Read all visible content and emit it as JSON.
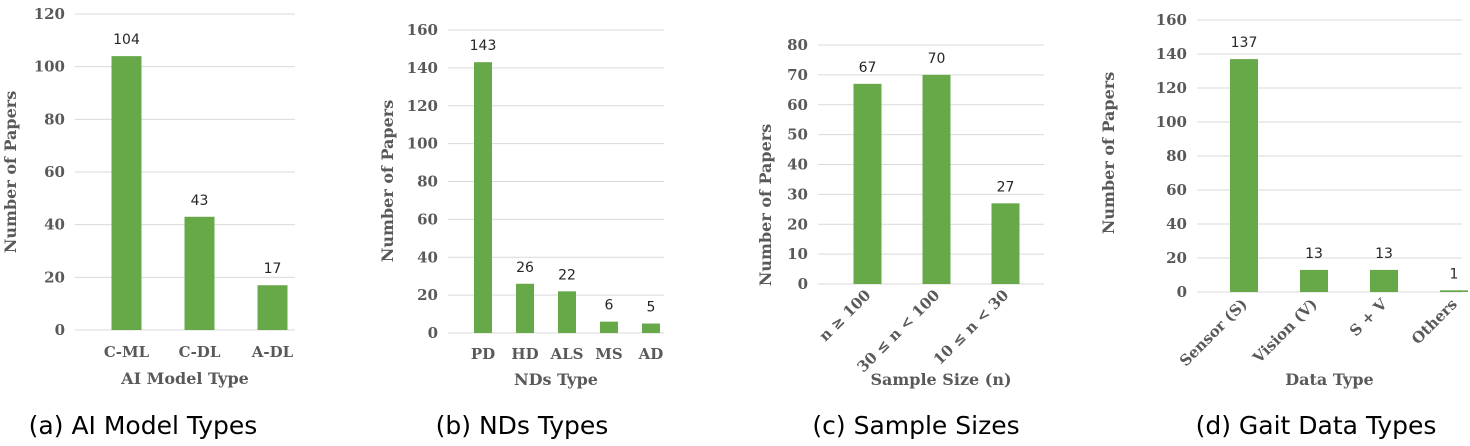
{
  "chart_data": [
    {
      "type": "bar",
      "caption": "(a) AI Model Types",
      "xlabel": "AI Model Type",
      "ylabel": "Number of Papers",
      "categories": [
        "C-ML",
        "C-DL",
        "A-DL"
      ],
      "values": [
        104,
        43,
        17
      ],
      "ylim": [
        0,
        120
      ],
      "ytick_step": 20,
      "grid": true,
      "bar_color": "#67a849"
    },
    {
      "type": "bar",
      "caption": "(b) NDs Types",
      "xlabel": "NDs Type",
      "ylabel": "Number of Papers",
      "categories": [
        "PD",
        "HD",
        "ALS",
        "MS",
        "AD"
      ],
      "values": [
        143,
        26,
        22,
        6,
        5
      ],
      "ylim": [
        0,
        160
      ],
      "ytick_step": 20,
      "grid": true,
      "bar_color": "#67a849"
    },
    {
      "type": "bar",
      "caption": "(c) Sample Sizes",
      "xlabel": "Sample Size (n)",
      "ylabel": "Number of Papers",
      "categories": [
        "n ≥ 100",
        "30 ≤ n < 100",
        "10 ≤ n < 30"
      ],
      "values": [
        67,
        70,
        27
      ],
      "ylim": [
        0,
        80
      ],
      "ytick_step": 10,
      "grid": true,
      "bar_color": "#67a849"
    },
    {
      "type": "bar",
      "caption": "(d) Gait Data Types",
      "xlabel": "Data Type",
      "ylabel": "Number of Papers",
      "categories": [
        "Sensor (S)",
        "Vision (V)",
        "S + V",
        "Others"
      ],
      "values": [
        137,
        13,
        13,
        1
      ],
      "ylim": [
        0,
        160
      ],
      "ytick_step": 20,
      "grid": true,
      "bar_color": "#67a849"
    }
  ]
}
